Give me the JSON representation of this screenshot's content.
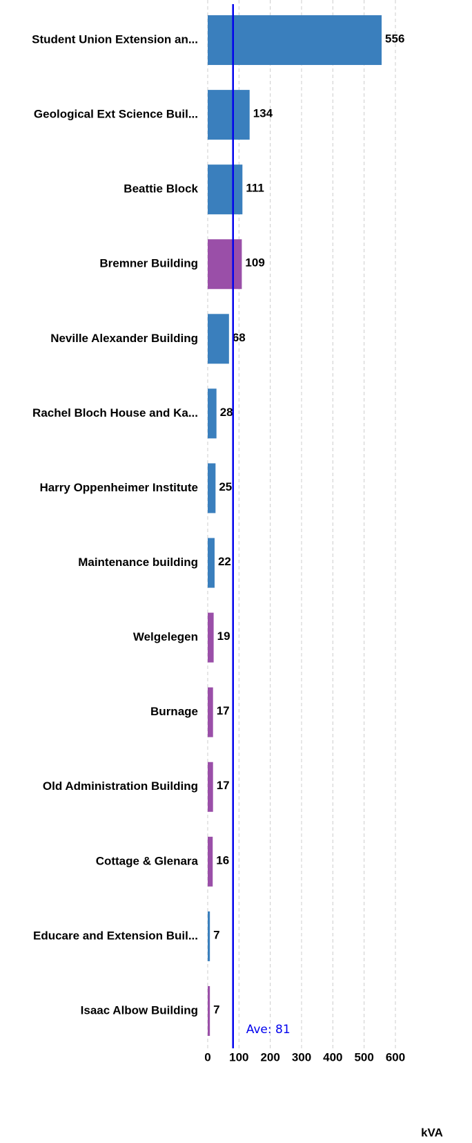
{
  "chart_data": {
    "type": "hbar",
    "categories": [
      "Student Union Extension an...",
      "Geological Ext Science Buil...",
      "Beattie Block",
      "Bremner Building",
      "Neville Alexander Building",
      "Rachel Bloch House and Ka...",
      "Harry Oppenheimer Institute",
      "Maintenance building",
      "Welgelegen",
      "Burnage",
      "Old Administration Building",
      "Cottage & Glenara",
      "Educare and Extension Buil...",
      "Isaac Albow Building"
    ],
    "values": [
      556,
      134,
      111,
      109,
      68,
      28,
      25,
      22,
      19,
      17,
      17,
      16,
      7,
      7
    ],
    "colors": [
      "#3a7fbd",
      "#3a7fbd",
      "#3a7fbd",
      "#9a4fa8",
      "#3a7fbd",
      "#3a7fbd",
      "#3a7fbd",
      "#3a7fbd",
      "#9a4fa8",
      "#9a4fa8",
      "#9a4fa8",
      "#9a4fa8",
      "#3a7fbd",
      "#9a4fa8"
    ],
    "xlim": [
      0,
      600
    ],
    "xticks": [
      0,
      100,
      200,
      300,
      400,
      500,
      600
    ],
    "x_label": "kVA",
    "grid": true,
    "average": {
      "value": 81,
      "label": "Ave: 81",
      "color": "#0000ee"
    }
  }
}
